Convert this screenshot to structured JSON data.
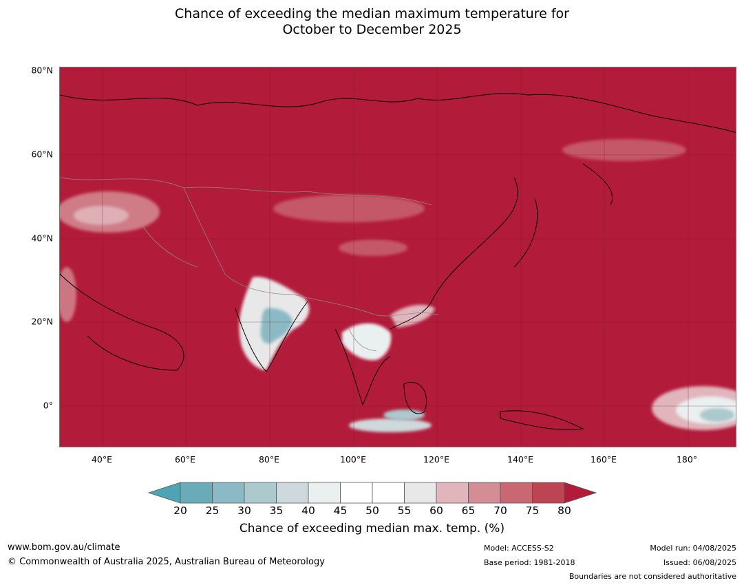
{
  "title_line1": "Chance of exceeding the median maximum temperature for",
  "title_line2": "October to December 2025",
  "lat_labels": [
    "80°N",
    "60°N",
    "40°N",
    "20°N",
    "0°"
  ],
  "lon_labels": [
    "40°E",
    "60°E",
    "80°E",
    "100°E",
    "120°E",
    "140°E",
    "160°E",
    "180°"
  ],
  "colorbar": {
    "ticks": [
      "20",
      "25",
      "30",
      "35",
      "40",
      "45",
      "50",
      "55",
      "60",
      "65",
      "70",
      "75",
      "80"
    ],
    "colors": [
      "#4da4b3",
      "#6aabba",
      "#8bbac6",
      "#acc9ce",
      "#cdd9dc",
      "#eaeff0",
      "#ffffff",
      "#ffffff",
      "#e8e8e8",
      "#e0b5bb",
      "#d48d95",
      "#c96873",
      "#bc4453",
      "#b31b3a"
    ],
    "label": "Chance of exceeding median max. temp. (%)"
  },
  "map": {
    "background_color": "#b31b3a"
  },
  "footer": {
    "website": "www.bom.gov.au/climate",
    "copyright": "© Commonwealth of Australia 2025, Australian Bureau of Meteorology",
    "model": "Model: ACCESS-S2",
    "base_period": "Base period: 1981-2018",
    "model_run": "Model run: 04/08/2025",
    "issued": "Issued: 06/08/2025",
    "disclaimer": "Boundaries are not considered authoritative"
  }
}
